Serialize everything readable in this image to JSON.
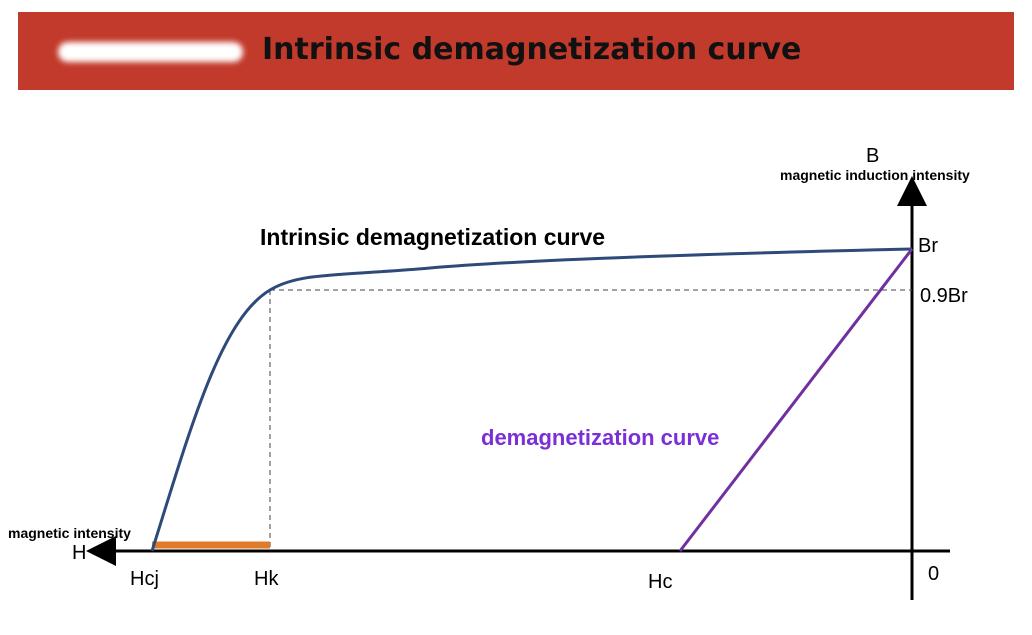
{
  "header": {
    "title": "Intrinsic demagnetization curve"
  },
  "axes": {
    "y_label": "B",
    "y_description": "magnetic induction intensity",
    "x_label": "H",
    "x_description": "magnetic intensity",
    "origin": "0"
  },
  "points": {
    "br": "Br",
    "br09": "0.9Br",
    "hc": "Hc",
    "hk": "Hk",
    "hcj": "Hcj"
  },
  "curves": {
    "intrinsic": "Intrinsic demagnetization curve",
    "normal": "demagnetization curve"
  }
}
